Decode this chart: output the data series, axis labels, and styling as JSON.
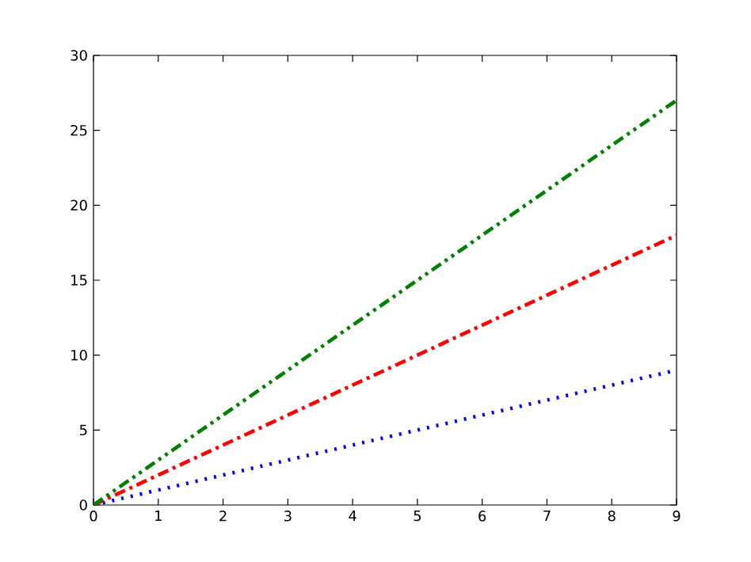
{
  "chart_data": {
    "type": "line",
    "x": [
      0,
      1,
      2,
      3,
      4,
      5,
      6,
      7,
      8,
      9
    ],
    "series": [
      {
        "color": "#0000ff",
        "line_style": "dotted",
        "values": [
          0,
          1,
          2,
          3,
          4,
          5,
          6,
          7,
          8,
          9
        ]
      },
      {
        "color": "#ff0000",
        "line_style": "dashdot",
        "values": [
          0,
          2,
          4,
          6,
          8,
          10,
          12,
          14,
          16,
          18
        ]
      },
      {
        "color": "#008000",
        "line_style": "dashdotdot",
        "values": [
          0,
          3,
          6,
          9,
          12,
          15,
          18,
          21,
          24,
          27
        ]
      }
    ],
    "xlim": [
      0,
      9
    ],
    "xticks": [
      0,
      1,
      2,
      3,
      4,
      5,
      6,
      7,
      8,
      9
    ],
    "ylim": [
      0,
      30
    ],
    "yticks": [
      0,
      5,
      10,
      15,
      20,
      25,
      30
    ],
    "grid": false,
    "marker": "none"
  }
}
